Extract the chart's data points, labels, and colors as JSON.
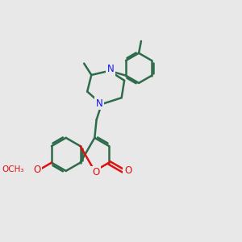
{
  "bg": "#e8e8e8",
  "bc": "#2d6b4a",
  "nc": "#1515ee",
  "oc": "#dd1111",
  "lw": 1.8,
  "fs": 8.5,
  "figsize": [
    3.0,
    3.0
  ],
  "dpi": 100,
  "xlim": [
    0,
    10
  ],
  "ylim": [
    0,
    10
  ]
}
